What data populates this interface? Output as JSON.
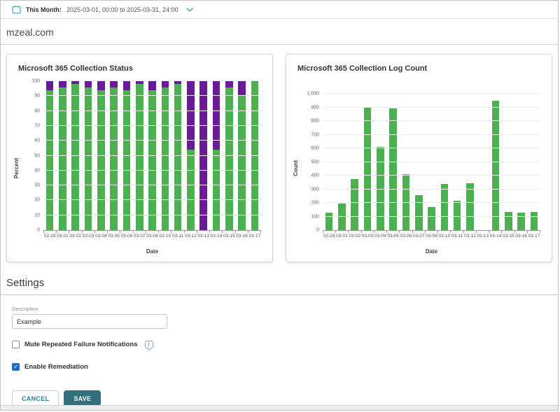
{
  "header": {
    "calendar_icon": "calendar-icon",
    "label": "This Month:",
    "range": "2025-03-01, 00:00 to 2025-03-31, 24:00",
    "chevron_icon": "chevron-down-icon"
  },
  "domain_title": "mzeal.com",
  "chart_data": [
    {
      "type": "bar",
      "stacked": true,
      "title": "Microsoft 365 Collection Status",
      "xlabel": "Date",
      "ylabel": "Percent",
      "ylim": [
        0,
        100
      ],
      "ytick_step": 10,
      "grid": true,
      "legend": "none",
      "categories": [
        "02-28",
        "03-01",
        "03-02",
        "03-03",
        "03-04",
        "03-05",
        "03-06",
        "03-07",
        "03-08",
        "03-10",
        "03-11",
        "03-12",
        "03-13",
        "03-14",
        "03-15",
        "03-16",
        "03-17"
      ],
      "series": [
        {
          "name": "success-percent",
          "color": "#4caf50",
          "values": [
            94,
            96,
            98,
            96,
            94,
            96,
            94,
            98,
            94,
            96,
            98,
            54,
            0,
            54,
            96,
            90,
            100
          ]
        },
        {
          "name": "failure-percent",
          "color": "#6a1b9a",
          "values": [
            6,
            4,
            2,
            4,
            6,
            4,
            6,
            2,
            6,
            4,
            2,
            46,
            100,
            46,
            4,
            10,
            0
          ]
        }
      ]
    },
    {
      "type": "bar",
      "stacked": false,
      "title": "Microsoft 365 Collection Log Count",
      "xlabel": "Date",
      "ylabel": "Count",
      "ylim": [
        0,
        1000
      ],
      "ytick_step": 100,
      "grid": true,
      "legend": "none",
      "categories": [
        "02-28",
        "03-01",
        "03-02",
        "03-03",
        "03-04",
        "03-05",
        "03-06",
        "03-07",
        "03-08",
        "03-10",
        "03-11",
        "03-12",
        "03-13",
        "03-14",
        "03-15",
        "03-16",
        "03-17"
      ],
      "series": [
        {
          "name": "log-count",
          "color": "#4caf50",
          "values": [
            130,
            195,
            375,
            895,
            610,
            893,
            410,
            258,
            168,
            340,
            218,
            345,
            0,
            950,
            133,
            130,
            135
          ]
        }
      ]
    }
  ],
  "settings": {
    "heading": "Settings",
    "description_label": "Description",
    "description_value": "Example",
    "mute_label": "Mute Repeated Failure Notifications",
    "mute_checked": false,
    "info_icon": "i",
    "remediation_label": "Enable Remediation",
    "remediation_checked": true
  },
  "actions": {
    "cancel_label": "CANCEL",
    "save_label": "SAVE"
  },
  "colors": {
    "accent_teal": "#32707f",
    "icon_teal": "#57a7b5",
    "bar_green": "#4caf50",
    "bar_purple": "#6a1b9a",
    "checkbox_blue": "#1a6fd6",
    "info_blue": "#7fa8c9"
  }
}
